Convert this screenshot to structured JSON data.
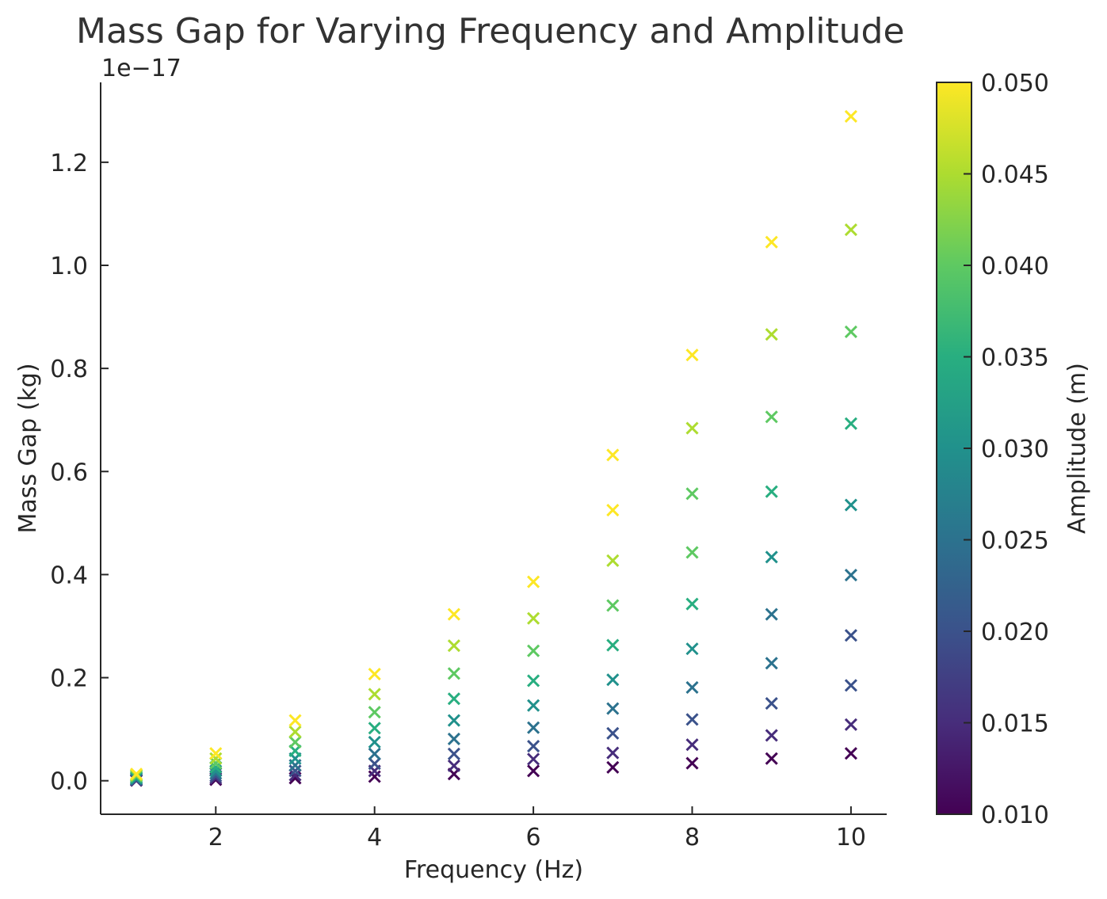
{
  "chart_data": {
    "type": "scatter",
    "title": "Mass Gap for Varying Frequency and Amplitude",
    "xlabel": "Frequency (Hz)",
    "ylabel": "Mass Gap (kg)",
    "y_offset_text": "1e−17",
    "y_scale_exponent": -17,
    "xlim": [
      0.55,
      10.45
    ],
    "ylim": [
      -0.065,
      1.355
    ],
    "x_ticks": [
      2,
      4,
      6,
      8,
      10
    ],
    "x_tick_labels": [
      "2",
      "4",
      "6",
      "8",
      "10"
    ],
    "y_ticks": [
      0.0,
      0.2,
      0.4,
      0.6,
      0.8,
      1.0,
      1.2
    ],
    "y_tick_labels": [
      "0.0",
      "0.2",
      "0.4",
      "0.6",
      "0.8",
      "1.0",
      "1.2"
    ],
    "marker": "x",
    "grid": false,
    "colormap": "viridis",
    "colorbar": {
      "label": "Amplitude (m)",
      "range": [
        0.01,
        0.05
      ],
      "ticks": [
        0.01,
        0.015,
        0.02,
        0.025,
        0.03,
        0.035,
        0.04,
        0.045,
        0.05
      ],
      "tick_labels": [
        "0.010",
        "0.015",
        "0.020",
        "0.025",
        "0.030",
        "0.035",
        "0.040",
        "0.045",
        "0.050"
      ]
    },
    "frequencies": [
      1,
      2,
      3,
      4,
      5,
      6,
      7,
      8,
      9,
      10
    ],
    "amplitudes": [
      0.01,
      0.015,
      0.02,
      0.025,
      0.03,
      0.035,
      0.04,
      0.045,
      0.05
    ],
    "points": [
      {
        "x": 1,
        "amplitude": 0.01,
        "y": 0.0005
      },
      {
        "x": 1,
        "amplitude": 0.015,
        "y": 0.001
      },
      {
        "x": 1,
        "amplitude": 0.02,
        "y": 0.002
      },
      {
        "x": 1,
        "amplitude": 0.025,
        "y": 0.003
      },
      {
        "x": 1,
        "amplitude": 0.03,
        "y": 0.005
      },
      {
        "x": 1,
        "amplitude": 0.035,
        "y": 0.007
      },
      {
        "x": 1,
        "amplitude": 0.04,
        "y": 0.009
      },
      {
        "x": 1,
        "amplitude": 0.045,
        "y": 0.011
      },
      {
        "x": 1,
        "amplitude": 0.05,
        "y": 0.013
      },
      {
        "x": 2,
        "amplitude": 0.01,
        "y": 0.002
      },
      {
        "x": 2,
        "amplitude": 0.015,
        "y": 0.005
      },
      {
        "x": 2,
        "amplitude": 0.02,
        "y": 0.009
      },
      {
        "x": 2,
        "amplitude": 0.025,
        "y": 0.014
      },
      {
        "x": 2,
        "amplitude": 0.03,
        "y": 0.019
      },
      {
        "x": 2,
        "amplitude": 0.035,
        "y": 0.026
      },
      {
        "x": 2,
        "amplitude": 0.04,
        "y": 0.034
      },
      {
        "x": 2,
        "amplitude": 0.045,
        "y": 0.043
      },
      {
        "x": 2,
        "amplitude": 0.05,
        "y": 0.053
      },
      {
        "x": 3,
        "amplitude": 0.01,
        "y": 0.005
      },
      {
        "x": 3,
        "amplitude": 0.015,
        "y": 0.011
      },
      {
        "x": 3,
        "amplitude": 0.02,
        "y": 0.019
      },
      {
        "x": 3,
        "amplitude": 0.025,
        "y": 0.03
      },
      {
        "x": 3,
        "amplitude": 0.03,
        "y": 0.043
      },
      {
        "x": 3,
        "amplitude": 0.035,
        "y": 0.058
      },
      {
        "x": 3,
        "amplitude": 0.04,
        "y": 0.075
      },
      {
        "x": 3,
        "amplitude": 0.045,
        "y": 0.095
      },
      {
        "x": 3,
        "amplitude": 0.05,
        "y": 0.117
      },
      {
        "x": 4,
        "amplitude": 0.01,
        "y": 0.008
      },
      {
        "x": 4,
        "amplitude": 0.015,
        "y": 0.019
      },
      {
        "x": 4,
        "amplitude": 0.02,
        "y": 0.033
      },
      {
        "x": 4,
        "amplitude": 0.025,
        "y": 0.052
      },
      {
        "x": 4,
        "amplitude": 0.03,
        "y": 0.075
      },
      {
        "x": 4,
        "amplitude": 0.035,
        "y": 0.102
      },
      {
        "x": 4,
        "amplitude": 0.04,
        "y": 0.133
      },
      {
        "x": 4,
        "amplitude": 0.045,
        "y": 0.168
      },
      {
        "x": 4,
        "amplitude": 0.05,
        "y": 0.207
      },
      {
        "x": 5,
        "amplitude": 0.01,
        "y": 0.013
      },
      {
        "x": 5,
        "amplitude": 0.015,
        "y": 0.029
      },
      {
        "x": 5,
        "amplitude": 0.02,
        "y": 0.052
      },
      {
        "x": 5,
        "amplitude": 0.025,
        "y": 0.081
      },
      {
        "x": 5,
        "amplitude": 0.03,
        "y": 0.117
      },
      {
        "x": 5,
        "amplitude": 0.035,
        "y": 0.159
      },
      {
        "x": 5,
        "amplitude": 0.04,
        "y": 0.208
      },
      {
        "x": 5,
        "amplitude": 0.045,
        "y": 0.262
      },
      {
        "x": 5,
        "amplitude": 0.05,
        "y": 0.323
      },
      {
        "x": 6,
        "amplitude": 0.01,
        "y": 0.019
      },
      {
        "x": 6,
        "amplitude": 0.015,
        "y": 0.042
      },
      {
        "x": 6,
        "amplitude": 0.02,
        "y": 0.067
      },
      {
        "x": 6,
        "amplitude": 0.025,
        "y": 0.103
      },
      {
        "x": 6,
        "amplitude": 0.03,
        "y": 0.146
      },
      {
        "x": 6,
        "amplitude": 0.035,
        "y": 0.194
      },
      {
        "x": 6,
        "amplitude": 0.04,
        "y": 0.252
      },
      {
        "x": 6,
        "amplitude": 0.045,
        "y": 0.315
      },
      {
        "x": 6,
        "amplitude": 0.05,
        "y": 0.386
      },
      {
        "x": 7,
        "amplitude": 0.01,
        "y": 0.026
      },
      {
        "x": 7,
        "amplitude": 0.015,
        "y": 0.054
      },
      {
        "x": 7,
        "amplitude": 0.02,
        "y": 0.092
      },
      {
        "x": 7,
        "amplitude": 0.025,
        "y": 0.14
      },
      {
        "x": 7,
        "amplitude": 0.03,
        "y": 0.196
      },
      {
        "x": 7,
        "amplitude": 0.035,
        "y": 0.263
      },
      {
        "x": 7,
        "amplitude": 0.04,
        "y": 0.34
      },
      {
        "x": 7,
        "amplitude": 0.045,
        "y": 0.427
      },
      {
        "x": 7,
        "amplitude": 0.05,
        "y": 0.525
      },
      {
        "x": 7,
        "amplitude": 0.05,
        "y": 0.632
      },
      {
        "x": 8,
        "amplitude": 0.01,
        "y": 0.034
      },
      {
        "x": 8,
        "amplitude": 0.015,
        "y": 0.07
      },
      {
        "x": 8,
        "amplitude": 0.02,
        "y": 0.119
      },
      {
        "x": 8,
        "amplitude": 0.025,
        "y": 0.181
      },
      {
        "x": 8,
        "amplitude": 0.03,
        "y": 0.256
      },
      {
        "x": 8,
        "amplitude": 0.035,
        "y": 0.343
      },
      {
        "x": 8,
        "amplitude": 0.04,
        "y": 0.443
      },
      {
        "x": 8,
        "amplitude": 0.04,
        "y": 0.557
      },
      {
        "x": 8,
        "amplitude": 0.045,
        "y": 0.684
      },
      {
        "x": 8,
        "amplitude": 0.05,
        "y": 0.826
      },
      {
        "x": 9,
        "amplitude": 0.01,
        "y": 0.043
      },
      {
        "x": 9,
        "amplitude": 0.015,
        "y": 0.088
      },
      {
        "x": 9,
        "amplitude": 0.02,
        "y": 0.15
      },
      {
        "x": 9,
        "amplitude": 0.025,
        "y": 0.228
      },
      {
        "x": 9,
        "amplitude": 0.025,
        "y": 0.323
      },
      {
        "x": 9,
        "amplitude": 0.03,
        "y": 0.434
      },
      {
        "x": 9,
        "amplitude": 0.035,
        "y": 0.561
      },
      {
        "x": 9,
        "amplitude": 0.04,
        "y": 0.706
      },
      {
        "x": 9,
        "amplitude": 0.045,
        "y": 0.866
      },
      {
        "x": 9,
        "amplitude": 0.05,
        "y": 1.045
      },
      {
        "x": 10,
        "amplitude": 0.01,
        "y": 0.053
      },
      {
        "x": 10,
        "amplitude": 0.015,
        "y": 0.109
      },
      {
        "x": 10,
        "amplitude": 0.02,
        "y": 0.185
      },
      {
        "x": 10,
        "amplitude": 0.02,
        "y": 0.282
      },
      {
        "x": 10,
        "amplitude": 0.025,
        "y": 0.399
      },
      {
        "x": 10,
        "amplitude": 0.03,
        "y": 0.535
      },
      {
        "x": 10,
        "amplitude": 0.035,
        "y": 0.693
      },
      {
        "x": 10,
        "amplitude": 0.04,
        "y": 0.871
      },
      {
        "x": 10,
        "amplitude": 0.045,
        "y": 1.069
      },
      {
        "x": 10,
        "amplitude": 0.05,
        "y": 1.289
      }
    ]
  }
}
